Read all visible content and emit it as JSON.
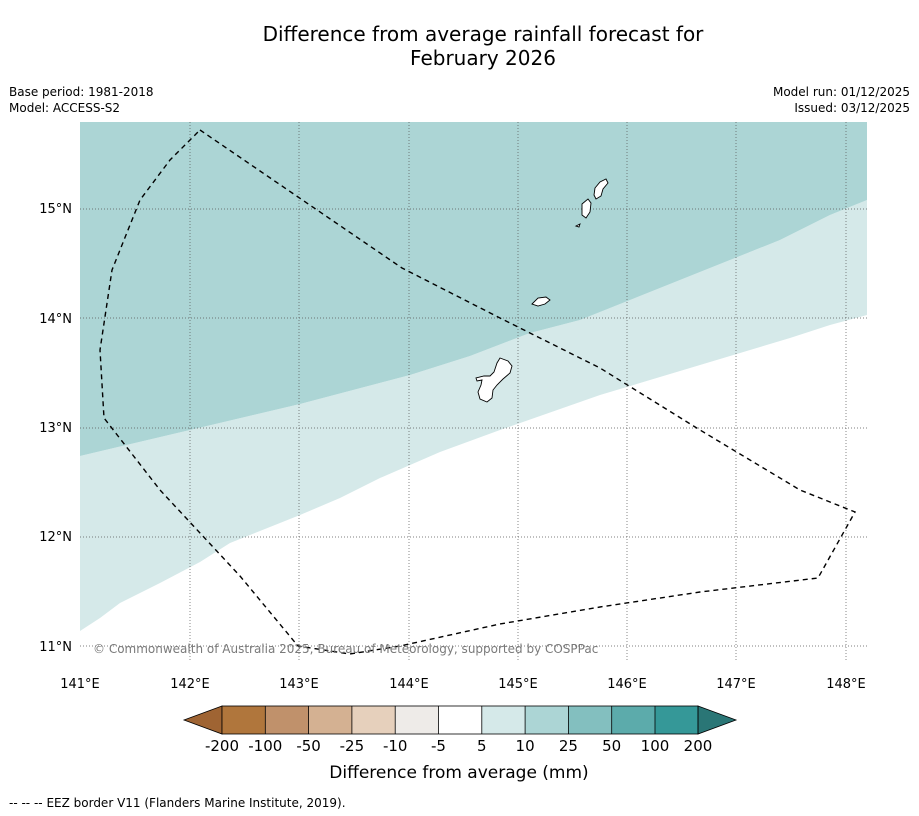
{
  "title": {
    "line1": "Difference from average rainfall forecast for",
    "line2": "February 2026"
  },
  "meta": {
    "base_period": "Base period: 1981-2018",
    "model": "Model: ACCESS-S2",
    "model_run": "Model run: 01/12/2025",
    "issued": "Issued: 03/12/2025"
  },
  "map": {
    "lat_labels": [
      "15°N",
      "14°N",
      "13°N",
      "12°N",
      "11°N"
    ],
    "lon_labels": [
      "141°E",
      "142°E",
      "143°E",
      "144°E",
      "145°E",
      "146°E",
      "147°E",
      "148°E"
    ],
    "copyright": "© Commonwealth of Australia 2025, Bureau of Meteorology, supported by COSPPac",
    "zone_colors": {
      "10_25": "#acd5d5",
      "5_10": "#d5e9e9",
      "minus5_5": "#ffffff"
    }
  },
  "colorbar": {
    "tick_labels": [
      "-200",
      "-100",
      "-50",
      "-25",
      "-10",
      "-5",
      "5",
      "10",
      "25",
      "50",
      "100",
      "200"
    ],
    "colors": [
      "#9f6433",
      "#b0763c",
      "#c0916b",
      "#d4b192",
      "#e6d0bc",
      "#eeebe8",
      "#ffffff",
      "#d5e9e9",
      "#acd5d5",
      "#83bfbf",
      "#5cabab",
      "#359898",
      "#2a7676"
    ],
    "label": "Difference from average (mm)"
  },
  "footer": {
    "legend_symbol": "-- -- --",
    "eez_label": "EEZ border V11 (Flanders Marine Institute, 2019)."
  }
}
